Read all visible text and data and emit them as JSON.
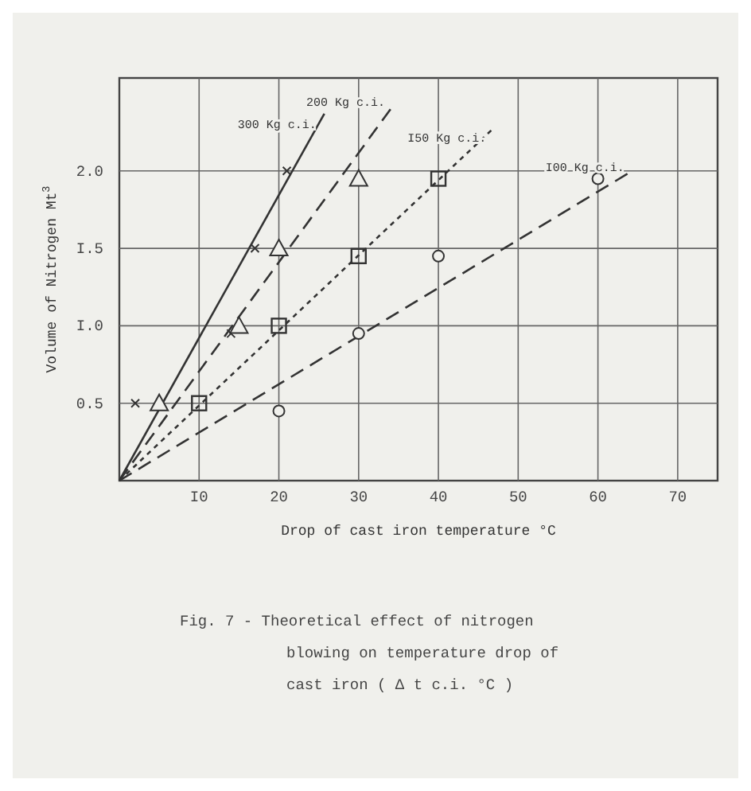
{
  "chart_data": {
    "type": "line",
    "xlabel": "Drop of cast iron temperature °C",
    "ylabel": "Volume of Nitrogen Mt$^{3}$",
    "xlim": [
      0,
      75
    ],
    "ylim": [
      0,
      2.6
    ],
    "xticks": [
      {
        "value": 10,
        "label": "I0"
      },
      20,
      30,
      40,
      50,
      60,
      70
    ],
    "yticks": [
      0.5,
      {
        "value": 1,
        "label": "I.0"
      },
      {
        "value": 1.5,
        "label": "I.5"
      },
      {
        "value": 2,
        "label": "2.0"
      }
    ],
    "grid": true,
    "series": [
      {
        "name": "300 Kg c.i.",
        "line_style": "solid",
        "marker": "none",
        "color": "#333333",
        "x": [
          0,
          25.7
        ],
        "values": [
          0,
          2.37
        ]
      },
      {
        "name": "200 Kg c.i.",
        "line_style": "dashed",
        "marker": "none",
        "color": "#333333",
        "x": [
          0,
          34.3
        ],
        "values": [
          0,
          2.42
        ]
      },
      {
        "name": "I50 Kg c.i.",
        "line_style": "dotted",
        "marker": "none",
        "color": "#333333",
        "x": [
          0,
          47
        ],
        "values": [
          0,
          2.28
        ]
      },
      {
        "name": "I00 Kg c.i.",
        "line_style": "dashed",
        "marker": "none",
        "color": "#333333",
        "x": [
          0,
          64.3
        ],
        "values": [
          0,
          2.0
        ]
      },
      {
        "type": "scatter",
        "marker": "cross",
        "color": "#333333",
        "x": [
          2,
          14,
          17,
          21
        ],
        "values": [
          0.5,
          0.95,
          1.5,
          2.0
        ]
      },
      {
        "type": "scatter",
        "marker": "triangle",
        "color": "#333333",
        "x": [
          5,
          15,
          20,
          30
        ],
        "values": [
          0.5,
          1.0,
          1.5,
          1.95
        ]
      },
      {
        "type": "scatter",
        "marker": "square",
        "color": "#333333",
        "x": [
          10,
          20,
          30,
          40
        ],
        "values": [
          0.5,
          1.0,
          1.45,
          1.95
        ]
      },
      {
        "type": "scatter",
        "marker": "circle",
        "color": "#333333",
        "x": [
          20,
          30,
          40,
          60
        ],
        "values": [
          0.45,
          0.95,
          1.45,
          1.95
        ]
      }
    ],
    "annotations": [
      "Fig. 7  -  Theoretical effect of nitrogen",
      "blowing on temperature drop of",
      "cast iron ( Δ t c.i. °C )"
    ]
  }
}
